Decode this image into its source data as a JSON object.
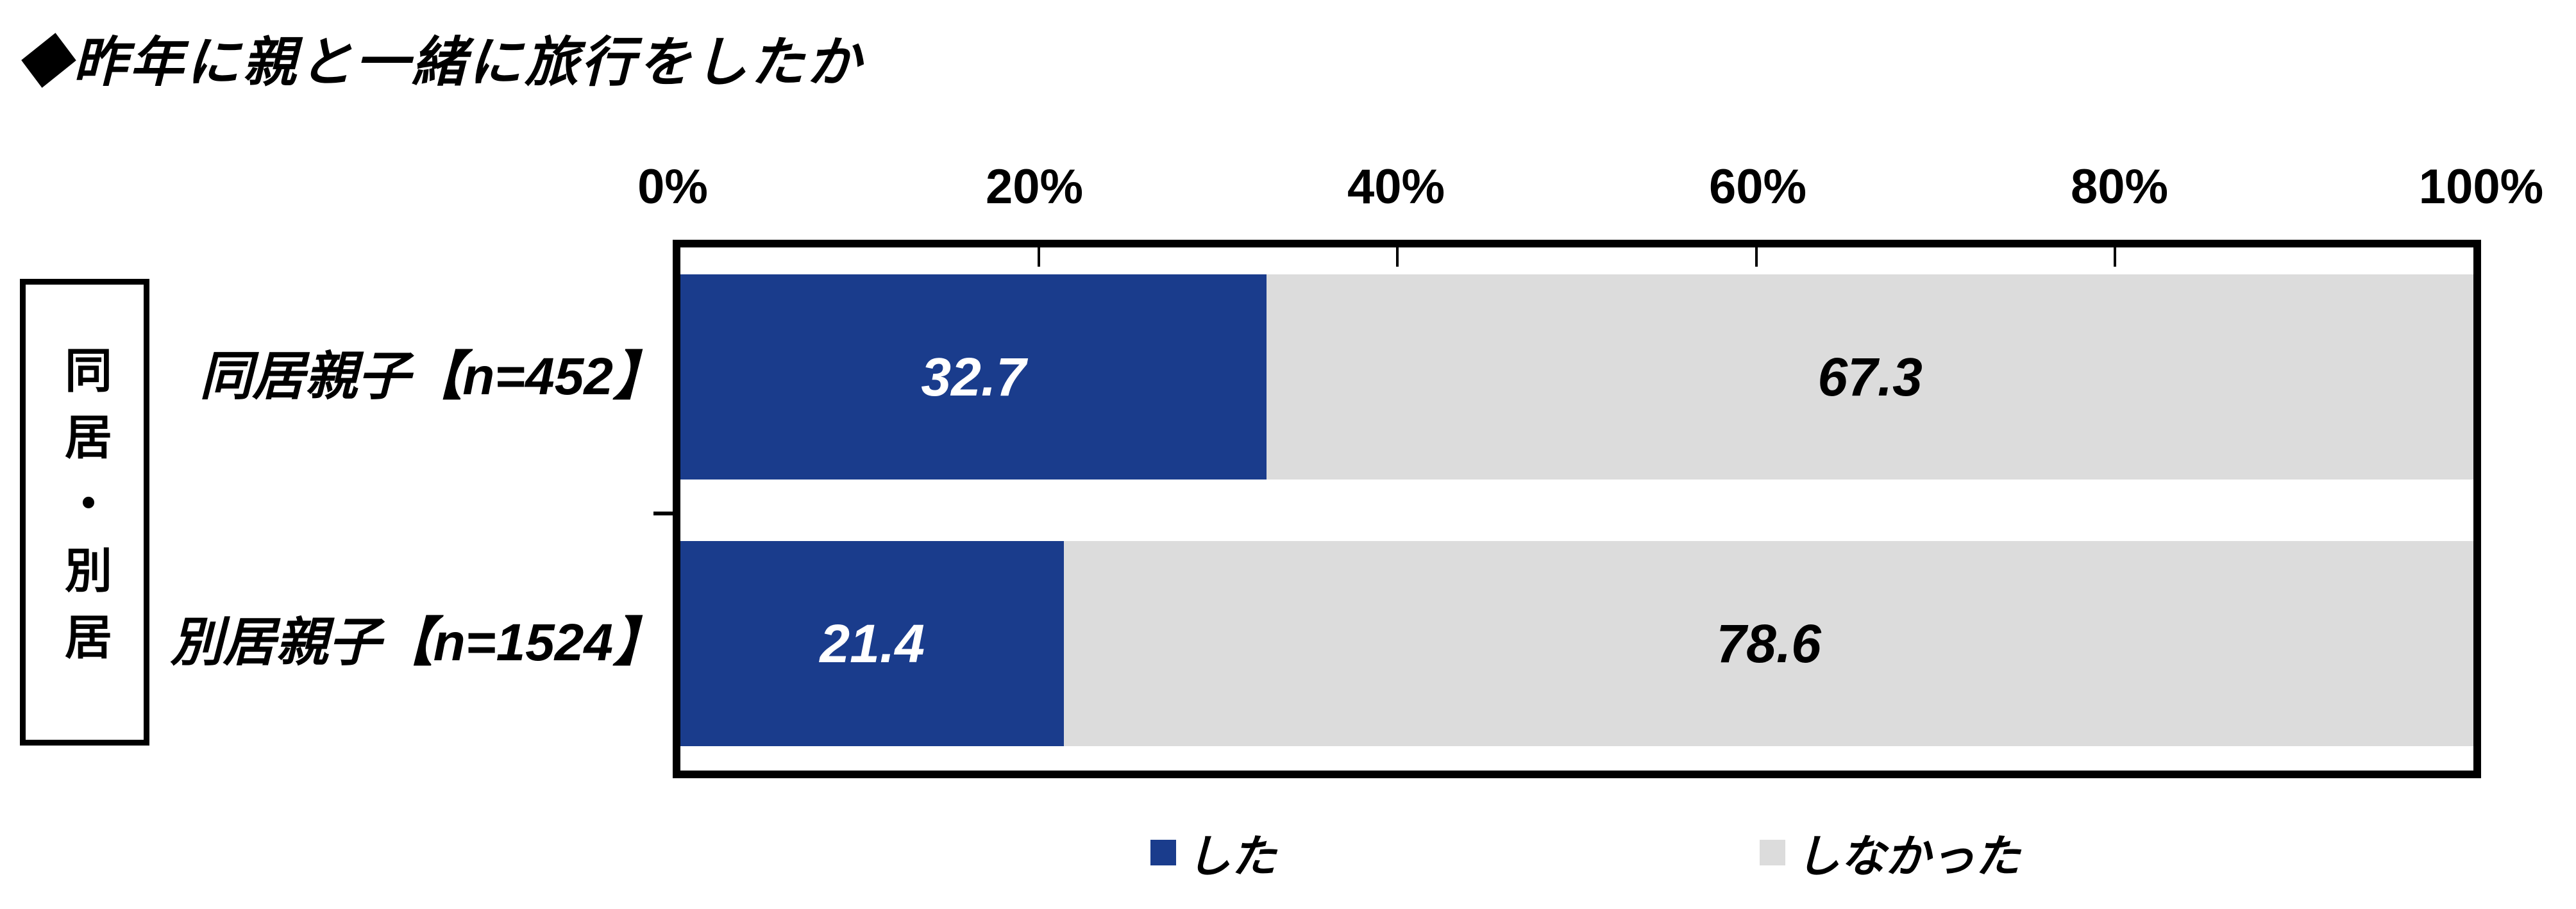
{
  "chart_data": {
    "type": "bar",
    "orientation": "horizontal",
    "stacked": true,
    "title": "◆昨年に親と一緒に旅行をしたか",
    "group_label": "同居・別居",
    "categories": [
      "同居親子【n=452】",
      "別居親子【n=1524】"
    ],
    "series": [
      {
        "name": "した",
        "color": "#1A3C8C",
        "values": [
          32.7,
          21.4
        ]
      },
      {
        "name": "しなかった",
        "color": "#DCDCDC",
        "values": [
          67.3,
          78.6
        ]
      }
    ],
    "xlim": [
      0,
      100
    ],
    "x_tick_labels": [
      "0%",
      "20%",
      "40%",
      "60%",
      "80%",
      "100%"
    ],
    "legend_position": "bottom",
    "value_labels": "inside",
    "colors": {
      "did_value_text": "#FFFFFF",
      "did_not_value_text": "#000000",
      "frame": "#000000",
      "background": "#FFFFFF"
    }
  }
}
